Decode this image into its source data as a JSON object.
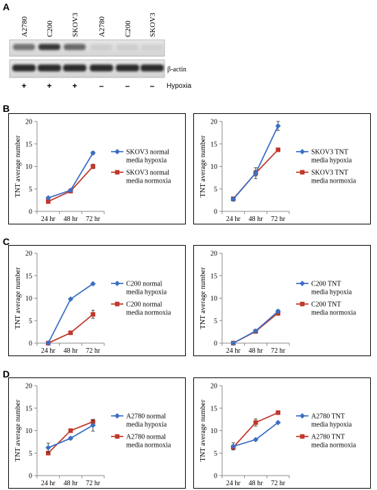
{
  "panels": {
    "a": "A",
    "b": "B",
    "c": "C",
    "d": "D"
  },
  "blot": {
    "lane_labels": [
      "A2780",
      "C200",
      "SKOV3",
      "A2780",
      "C200",
      "SKOV3"
    ],
    "hypoxia_marks": [
      "+",
      "+",
      "+",
      "–",
      "–",
      "–"
    ],
    "hypoxia_label": "Hypoxia",
    "actin_label": "β-actin"
  },
  "colors": {
    "hypoxia": "#3b6fc4",
    "normoxia": "#c0392b"
  },
  "chart_data": [
    {
      "type": "line",
      "panel": "B",
      "ylabel": "TNT average number",
      "categories": [
        "24 hr",
        "48 hr",
        "72 hr"
      ],
      "ylim": [
        0,
        20
      ],
      "yticks": [
        0,
        5,
        10,
        15,
        20
      ],
      "legend": "right",
      "series": [
        {
          "name": "SKOV3 normal media hypoxia",
          "legend_lines": [
            "SKOV3 normal",
            "media hypoxia"
          ],
          "marker": "diamond",
          "values": [
            3,
            4.7,
            13
          ],
          "errors": [
            0.2,
            0.2,
            0.3
          ]
        },
        {
          "name": "SKOV3 normal media normoxia",
          "legend_lines": [
            "SKOV3 normal",
            "media normoxia"
          ],
          "marker": "square",
          "values": [
            2.2,
            4.5,
            10
          ],
          "errors": [
            0.2,
            0.2,
            0.5
          ]
        }
      ]
    },
    {
      "type": "line",
      "panel": "B",
      "ylabel": "TNT average number",
      "categories": [
        "24 hr",
        "48 hr",
        "72 hr"
      ],
      "ylim": [
        0,
        20
      ],
      "yticks": [
        0,
        5,
        10,
        15,
        20
      ],
      "legend": "right",
      "series": [
        {
          "name": "SKOV3 TNT media hypoxia",
          "legend_lines": [
            "SKOV3 TNT",
            "media hypoxia"
          ],
          "marker": "diamond",
          "values": [
            2.7,
            8.5,
            19
          ],
          "errors": [
            0.4,
            1.2,
            1.0
          ]
        },
        {
          "name": "SKOV3 TNT media normoxia",
          "legend_lines": [
            "SKOV3 TNT",
            "media normoxia"
          ],
          "marker": "square",
          "values": [
            2.8,
            8.5,
            13.7
          ],
          "errors": [
            0.3,
            0.6,
            0.2
          ]
        }
      ]
    },
    {
      "type": "line",
      "panel": "C",
      "ylabel": "TNT average number",
      "categories": [
        "24 hr",
        "48 hr",
        "72 hr"
      ],
      "ylim": [
        0,
        20
      ],
      "yticks": [
        0,
        5,
        10,
        15,
        20
      ],
      "legend": "right",
      "series": [
        {
          "name": "C200 normal media hypoxia",
          "legend_lines": [
            "C200 normal",
            "media hypoxia"
          ],
          "marker": "diamond",
          "values": [
            0,
            9.8,
            13.2
          ],
          "errors": [
            0.1,
            0.2,
            0.2
          ]
        },
        {
          "name": "C200 normal media normoxia",
          "legend_lines": [
            "C200 normal",
            "media normoxia"
          ],
          "marker": "square",
          "values": [
            0,
            2.3,
            6.4
          ],
          "errors": [
            0.1,
            0.3,
            0.9
          ]
        }
      ]
    },
    {
      "type": "line",
      "panel": "C",
      "ylabel": "TNT average number",
      "categories": [
        "24 hr",
        "48 hr",
        "72 hr"
      ],
      "ylim": [
        0,
        20
      ],
      "yticks": [
        0,
        5,
        10,
        15,
        20
      ],
      "legend": "right",
      "series": [
        {
          "name": "C200 TNT media hypoxia",
          "legend_lines": [
            "C200 TNT",
            "media hypoxia"
          ],
          "marker": "diamond",
          "values": [
            0,
            2.7,
            7.1
          ],
          "errors": [
            0.1,
            0.3,
            0.3
          ]
        },
        {
          "name": "C200 TNT media normoxia",
          "legend_lines": [
            "C200 TNT",
            "media normoxia"
          ],
          "marker": "square",
          "values": [
            0,
            2.6,
            6.7
          ],
          "errors": [
            0.1,
            0.3,
            0.5
          ]
        }
      ]
    },
    {
      "type": "line",
      "panel": "D",
      "ylabel": "TNT average number",
      "categories": [
        "24 hr",
        "48 hr",
        "72 hr"
      ],
      "ylim": [
        0,
        20
      ],
      "yticks": [
        0,
        5,
        10,
        15,
        20
      ],
      "legend": "right",
      "series": [
        {
          "name": "A2780 normal media hypoxia",
          "legend_lines": [
            "A2780 normal",
            "media hypoxia"
          ],
          "marker": "diamond",
          "values": [
            6.2,
            8.3,
            11.2
          ],
          "errors": [
            1.0,
            0.3,
            1.3
          ]
        },
        {
          "name": "A2780 normal media normoxia",
          "legend_lines": [
            "A2780 normal",
            "media normoxia"
          ],
          "marker": "square",
          "values": [
            5,
            10,
            12
          ],
          "errors": [
            0.3,
            0.3,
            0.3
          ]
        }
      ]
    },
    {
      "type": "line",
      "panel": "D",
      "ylabel": "TNT average number",
      "categories": [
        "24 hr",
        "48 hr",
        "72 hr"
      ],
      "ylim": [
        0,
        20
      ],
      "yticks": [
        0,
        5,
        10,
        15,
        20
      ],
      "legend": "right",
      "series": [
        {
          "name": "A2780 TNT media hypoxia",
          "legend_lines": [
            "A2780 TNT",
            "media hypoxia"
          ],
          "marker": "diamond",
          "values": [
            6.5,
            8,
            11.8
          ],
          "errors": [
            0.8,
            0.2,
            0.2
          ]
        },
        {
          "name": "A2780 TNT media normoxia",
          "legend_lines": [
            "A2780 TNT",
            "media normoxia"
          ],
          "marker": "square",
          "values": [
            6.3,
            11.8,
            14
          ],
          "errors": [
            0.4,
            0.8,
            0.4
          ]
        }
      ]
    }
  ]
}
